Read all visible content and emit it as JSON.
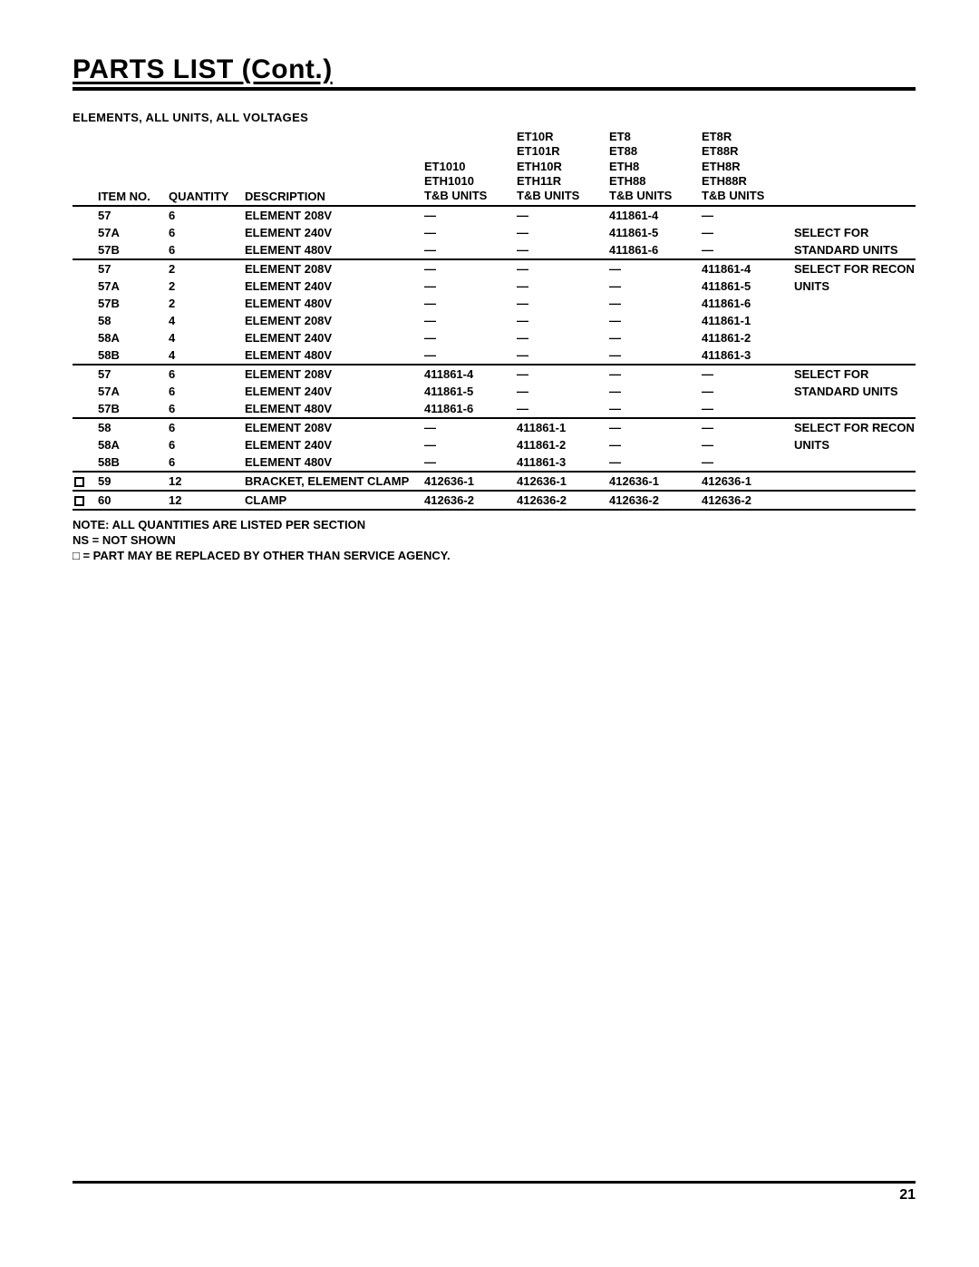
{
  "title": "PARTS LIST (Cont.)",
  "subtitle": "ELEMENTS, ALL UNITS, ALL VOLTAGES",
  "page_number": "21",
  "columns": {
    "flag": "",
    "item": "ITEM NO.",
    "qty": "QUANTITY",
    "desc": "DESCRIPTION",
    "unit_headers": [
      [
        "",
        "",
        "ET1010",
        "ETH1010",
        "T&B UNITS"
      ],
      [
        "ET10R",
        "ET101R",
        "ETH10R",
        "ETH11R",
        "T&B UNITS"
      ],
      [
        "ET8",
        "ET88",
        "ETH8",
        "ETH88",
        "T&B UNITS"
      ],
      [
        "ET8R",
        "ET88R",
        "ETH8R",
        "ETH88R",
        "T&B UNITS"
      ]
    ],
    "notes": ""
  },
  "groups": [
    {
      "rows": [
        {
          "flag": "",
          "item": "57",
          "qty": "6",
          "desc": "ELEMENT 208V",
          "u": [
            "—",
            "—",
            "411861-4",
            "—"
          ],
          "note": ""
        },
        {
          "flag": "",
          "item": "57A",
          "qty": "6",
          "desc": "ELEMENT 240V",
          "u": [
            "—",
            "—",
            "411861-5",
            "—"
          ],
          "note": "SELECT FOR"
        },
        {
          "flag": "",
          "item": "57B",
          "qty": "6",
          "desc": "ELEMENT 480V",
          "u": [
            "—",
            "—",
            "411861-6",
            "—"
          ],
          "note": "STANDARD UNITS"
        }
      ]
    },
    {
      "rows": [
        {
          "flag": "",
          "item": "57",
          "qty": "2",
          "desc": "ELEMENT 208V",
          "u": [
            "—",
            "—",
            "—",
            "411861-4"
          ],
          "note": "SELECT FOR RECON"
        },
        {
          "flag": "",
          "item": "57A",
          "qty": "2",
          "desc": "ELEMENT 240V",
          "u": [
            "—",
            "—",
            "—",
            "411861-5"
          ],
          "note": "UNITS"
        },
        {
          "flag": "",
          "item": "57B",
          "qty": "2",
          "desc": "ELEMENT 480V",
          "u": [
            "—",
            "—",
            "—",
            "411861-6"
          ],
          "note": ""
        },
        {
          "flag": "",
          "item": "58",
          "qty": "4",
          "desc": "ELEMENT 208V",
          "u": [
            "—",
            "—",
            "—",
            "411861-1"
          ],
          "note": ""
        },
        {
          "flag": "",
          "item": "58A",
          "qty": "4",
          "desc": "ELEMENT 240V",
          "u": [
            "—",
            "—",
            "—",
            "411861-2"
          ],
          "note": ""
        },
        {
          "flag": "",
          "item": "58B",
          "qty": "4",
          "desc": "ELEMENT 480V",
          "u": [
            "—",
            "—",
            "—",
            "411861-3"
          ],
          "note": ""
        }
      ]
    },
    {
      "rows": [
        {
          "flag": "",
          "item": "57",
          "qty": "6",
          "desc": "ELEMENT 208V",
          "u": [
            "411861-4",
            "—",
            "—",
            "—"
          ],
          "note": "SELECT FOR"
        },
        {
          "flag": "",
          "item": "57A",
          "qty": "6",
          "desc": "ELEMENT 240V",
          "u": [
            "411861-5",
            "—",
            "—",
            "—"
          ],
          "note": "STANDARD UNITS"
        },
        {
          "flag": "",
          "item": "57B",
          "qty": "6",
          "desc": "ELEMENT 480V",
          "u": [
            "411861-6",
            "—",
            "—",
            "—"
          ],
          "note": ""
        }
      ]
    },
    {
      "rows": [
        {
          "flag": "",
          "item": "58",
          "qty": "6",
          "desc": "ELEMENT 208V",
          "u": [
            "—",
            "411861-1",
            "—",
            "—"
          ],
          "note": "SELECT FOR RECON"
        },
        {
          "flag": "",
          "item": "58A",
          "qty": "6",
          "desc": "ELEMENT 240V",
          "u": [
            "—",
            "411861-2",
            "—",
            "—"
          ],
          "note": "UNITS"
        },
        {
          "flag": "",
          "item": "58B",
          "qty": "6",
          "desc": "ELEMENT 480V",
          "u": [
            "—",
            "411861-3",
            "—",
            "—"
          ],
          "note": ""
        }
      ]
    },
    {
      "rows": [
        {
          "flag": "box",
          "item": "59",
          "qty": "12",
          "desc": "BRACKET, ELEMENT CLAMP",
          "u": [
            "412636-1",
            "412636-1",
            "412636-1",
            "412636-1"
          ],
          "note": ""
        }
      ]
    },
    {
      "rows": [
        {
          "flag": "box",
          "item": "60",
          "qty": "12",
          "desc": "CLAMP",
          "u": [
            "412636-2",
            "412636-2",
            "412636-2",
            "412636-2"
          ],
          "note": ""
        }
      ]
    }
  ],
  "footnotes": [
    "NOTE: ALL QUANTITIES ARE LISTED PER SECTION",
    "NS = NOT SHOWN",
    "□ =  PART MAY BE REPLACED BY OTHER THAN SERVICE AGENCY."
  ]
}
